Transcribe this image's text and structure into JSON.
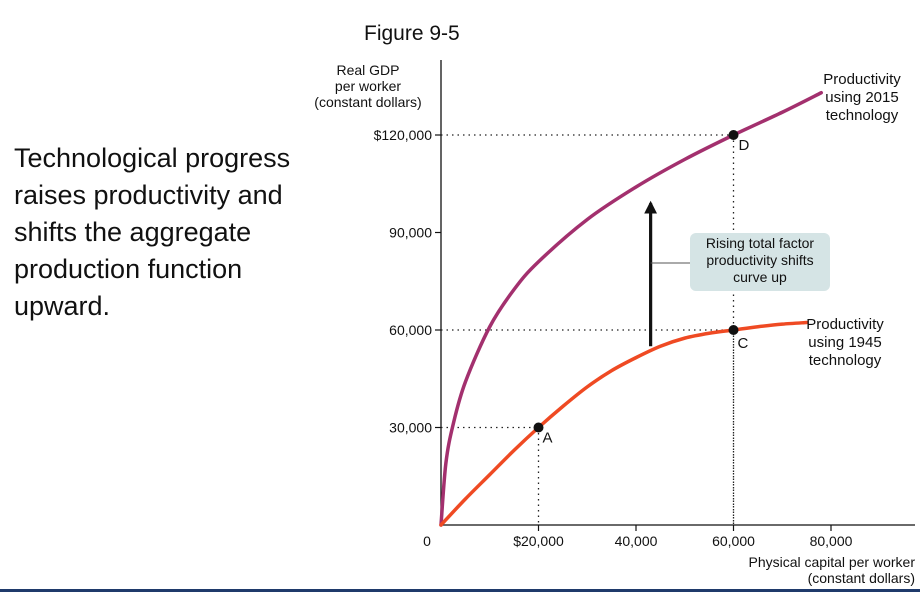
{
  "figure_label": "Figure 9-5",
  "side_text": "Technological progress raises productivity and shifts the aggregate production function upward.",
  "chart_data": {
    "type": "line",
    "ylabel": [
      "Real GDP",
      "per worker",
      "(constant dollars)"
    ],
    "xlabel": [
      "Physical capital per worker",
      "(constant dollars)"
    ],
    "xlim": [
      0,
      80000
    ],
    "ylim": [
      0,
      120000
    ],
    "x_ticks": [
      {
        "value": 0,
        "label": "0"
      },
      {
        "value": 20000,
        "label": "$20,000"
      },
      {
        "value": 40000,
        "label": "40,000"
      },
      {
        "value": 60000,
        "label": "60,000"
      },
      {
        "value": 80000,
        "label": "80,000"
      }
    ],
    "y_ticks": [
      {
        "value": 30000,
        "label": "30,000"
      },
      {
        "value": 60000,
        "label": "60,000"
      },
      {
        "value": 90000,
        "label": "90,000"
      },
      {
        "value": 120000,
        "label": "$120,000"
      }
    ],
    "series": [
      {
        "name": [
          "Productivity",
          "using 2015",
          "technology"
        ],
        "color": "#a3306e",
        "points": [
          [
            0,
            0
          ],
          [
            1000,
            19000
          ],
          [
            2500,
            31000
          ],
          [
            5000,
            44000
          ],
          [
            10000,
            61000
          ],
          [
            15000,
            72500
          ],
          [
            20000,
            81000
          ],
          [
            30000,
            94000
          ],
          [
            40000,
            104000
          ],
          [
            50000,
            112500
          ],
          [
            60000,
            120000
          ],
          [
            70000,
            127000
          ],
          [
            78000,
            133000
          ]
        ]
      },
      {
        "name": [
          "Productivity",
          "using 1945",
          "technology"
        ],
        "color": "#ef4a23",
        "points": [
          [
            0,
            0
          ],
          [
            5000,
            8000
          ],
          [
            10000,
            15500
          ],
          [
            15000,
            23000
          ],
          [
            20000,
            30000
          ],
          [
            25000,
            36500
          ],
          [
            30000,
            42500
          ],
          [
            35000,
            47500
          ],
          [
            40000,
            51500
          ],
          [
            45000,
            55000
          ],
          [
            50000,
            57500
          ],
          [
            55000,
            59000
          ],
          [
            60000,
            60000
          ],
          [
            65000,
            61000
          ],
          [
            70000,
            61800
          ],
          [
            75000,
            62300
          ]
        ]
      }
    ],
    "points": [
      {
        "label": "A",
        "x": 20000,
        "y": 30000
      },
      {
        "label": "C",
        "x": 60000,
        "y": 60000
      },
      {
        "label": "D",
        "x": 60000,
        "y": 120000
      }
    ],
    "annotation": [
      "Rising total factor",
      "productivity shifts",
      "curve up"
    ],
    "arrow": {
      "x": 43000,
      "from_y": 55000,
      "to_y": 99000
    },
    "annotation_bg": "#d5e4e5"
  }
}
